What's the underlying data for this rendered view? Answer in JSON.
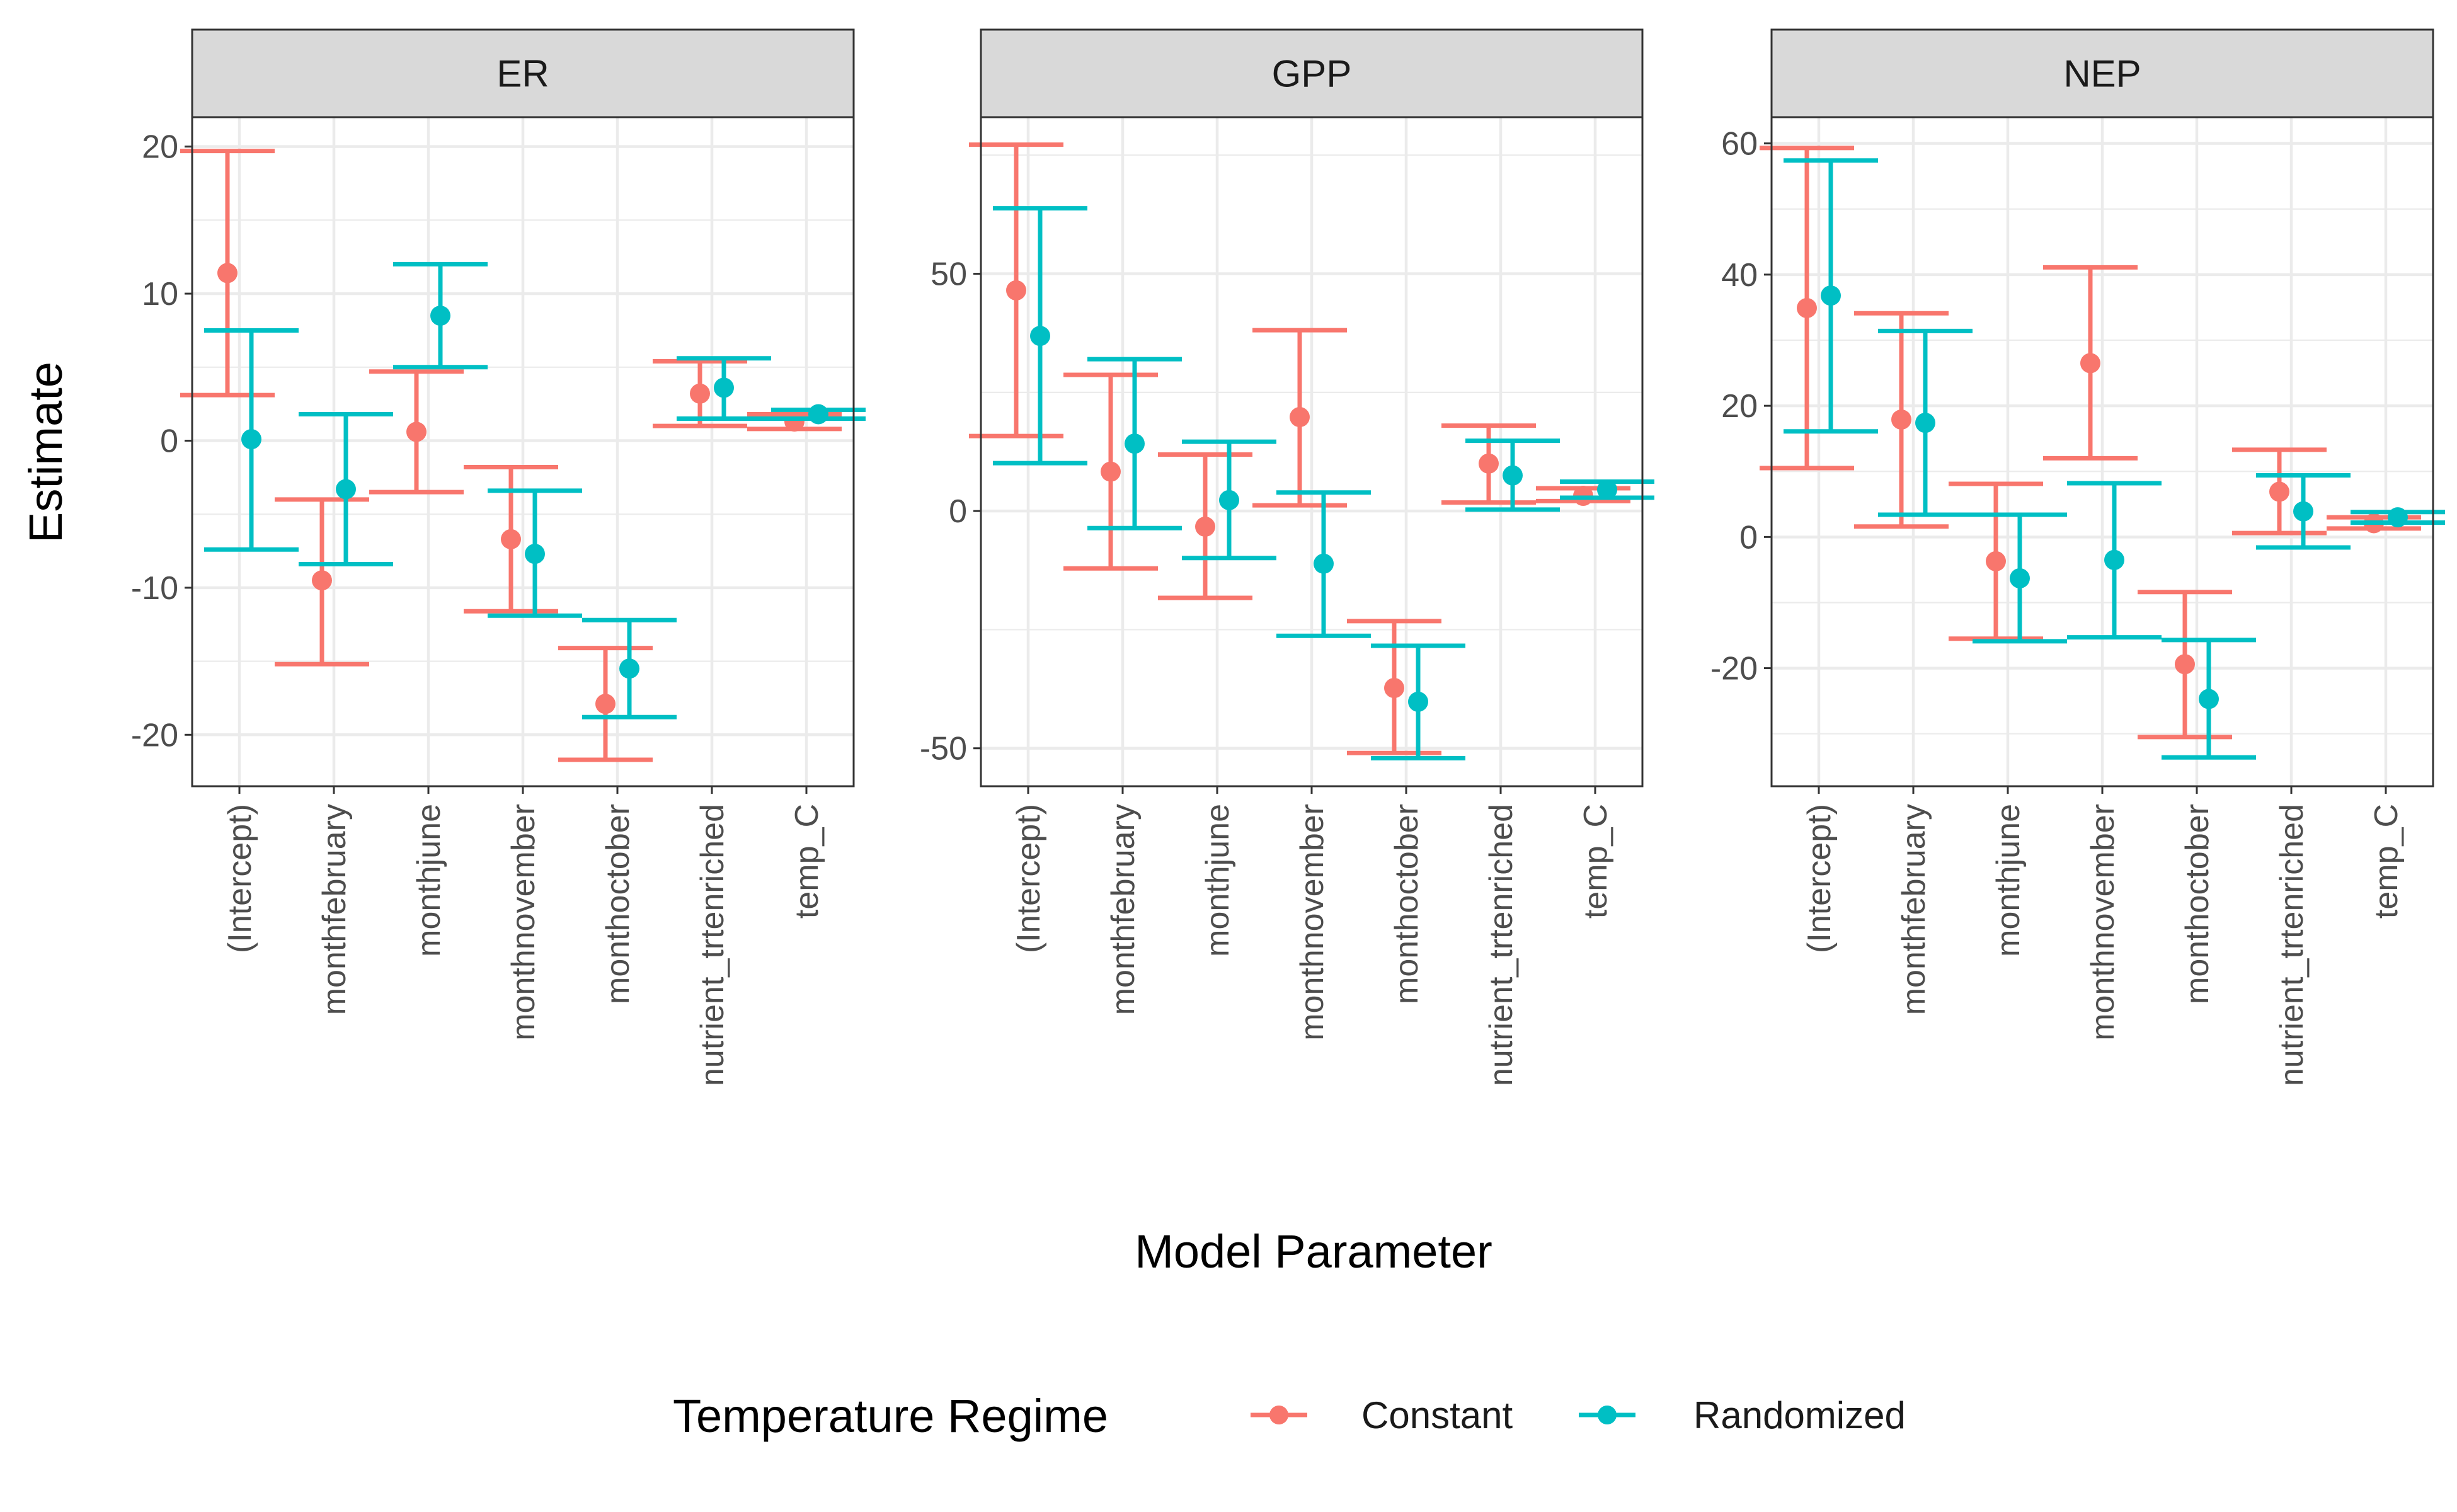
{
  "chart_data": {
    "type": "errorbar",
    "xlabel": "Model Parameter",
    "ylabel": "Estimate",
    "categories": [
      "(Intercept)",
      "monthfebruary",
      "monthjune",
      "monthnovember",
      "monthoctober",
      "nutrient_trtenriched",
      "temp_C"
    ],
    "legend": {
      "title": "Temperature Regime",
      "position": "bottom",
      "entries": [
        "Constant",
        "Randomized"
      ]
    },
    "colors": {
      "Constant": "#F8766D",
      "Randomized": "#00BFC4"
    },
    "grid": true,
    "panels": [
      {
        "strip": "ER",
        "ylim": [
          -23.5,
          22
        ],
        "yticks": [
          -20,
          -10,
          0,
          10,
          20
        ],
        "series": [
          {
            "name": "Constant",
            "estimate": [
              11.4,
              -9.5,
              0.6,
              -6.7,
              -17.9,
              3.2,
              1.3
            ],
            "lower": [
              3.1,
              -15.2,
              -3.5,
              -11.6,
              -21.7,
              1.0,
              0.8
            ],
            "upper": [
              19.7,
              -4.0,
              4.7,
              -1.8,
              -14.1,
              5.4,
              1.8
            ]
          },
          {
            "name": "Randomized",
            "estimate": [
              0.1,
              -3.3,
              8.5,
              -7.7,
              -15.5,
              3.6,
              1.8
            ],
            "lower": [
              -7.4,
              -8.4,
              5.0,
              -11.9,
              -18.8,
              1.5,
              1.5
            ],
            "upper": [
              7.5,
              1.8,
              12.0,
              -3.4,
              -12.2,
              5.6,
              2.1
            ]
          }
        ]
      },
      {
        "strip": "GPP",
        "ylim": [
          -58,
          83
        ],
        "yticks": [
          -50,
          0,
          50
        ],
        "series": [
          {
            "name": "Constant",
            "estimate": [
              46.5,
              8.3,
              -3.3,
              19.8,
              -37.3,
              10.0,
              3.2
            ],
            "lower": [
              15.8,
              -12.1,
              -18.3,
              1.2,
              -51.0,
              1.8,
              2.1
            ],
            "upper": [
              77.2,
              28.7,
              11.9,
              38.1,
              -23.2,
              18.0,
              4.8
            ]
          },
          {
            "name": "Randomized",
            "estimate": [
              36.9,
              14.2,
              2.3,
              -11.1,
              -40.2,
              7.5,
              4.5
            ],
            "lower": [
              10.1,
              -3.6,
              -9.9,
              -26.3,
              -52.1,
              0.3,
              2.8
            ],
            "upper": [
              63.8,
              32.0,
              14.6,
              3.9,
              -28.4,
              14.8,
              6.2
            ]
          }
        ]
      },
      {
        "strip": "NEP",
        "ylim": [
          -38,
          64
        ],
        "yticks": [
          -20,
          0,
          20,
          40,
          60
        ],
        "series": [
          {
            "name": "Constant",
            "estimate": [
              34.9,
              17.9,
              -3.7,
              26.5,
              -19.4,
              6.9,
              2.1
            ],
            "lower": [
              10.5,
              1.6,
              -15.5,
              12.0,
              -30.5,
              0.6,
              1.3
            ],
            "upper": [
              59.3,
              34.1,
              8.1,
              41.1,
              -8.4,
              13.3,
              3.0
            ]
          },
          {
            "name": "Randomized",
            "estimate": [
              36.8,
              17.4,
              -6.3,
              -3.5,
              -24.7,
              3.9,
              3.0
            ],
            "lower": [
              16.1,
              3.4,
              -15.9,
              -15.3,
              -33.6,
              -1.6,
              2.2
            ],
            "upper": [
              57.4,
              31.4,
              3.4,
              8.2,
              -15.7,
              9.4,
              3.8
            ]
          }
        ]
      }
    ]
  }
}
